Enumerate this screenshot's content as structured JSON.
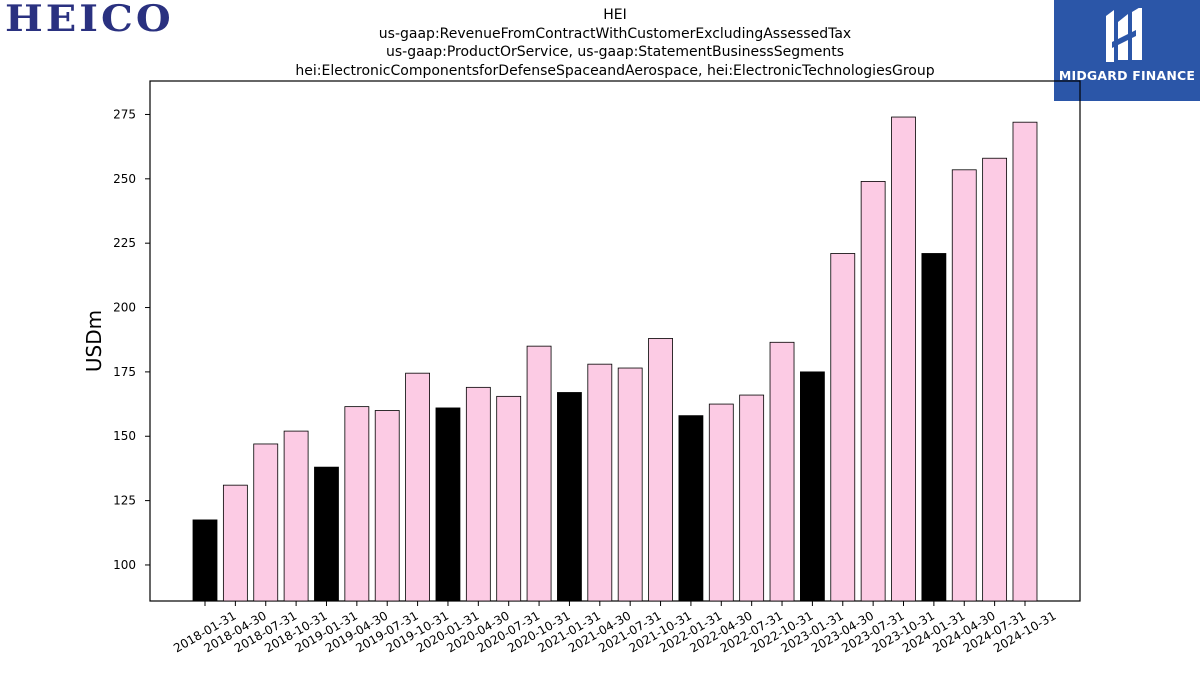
{
  "header": {
    "left_logo_text": "HEICO",
    "right_logo_text": "MIDGARD FINANCE"
  },
  "colors": {
    "pink": "#fccbe4",
    "black": "#000000",
    "heico_blue": "#2a3180",
    "midgard_blue": "#2b56a8"
  },
  "chart_data": {
    "type": "bar",
    "title_lines": [
      "HEI",
      "us-gaap:RevenueFromContractWithCustomerExcludingAssessedTax",
      "us-gaap:ProductOrService, us-gaap:StatementBusinessSegments",
      "hei:ElectronicComponentsforDefenseSpaceandAerospace, hei:ElectronicTechnologiesGroup"
    ],
    "ylabel": "USDm",
    "xlabel": "",
    "ylim": [
      86,
      288
    ],
    "yticks": [
      100,
      125,
      150,
      175,
      200,
      225,
      250,
      275
    ],
    "grid": false,
    "categories": [
      "2018-01-31",
      "2018-04-30",
      "2018-07-31",
      "2018-10-31",
      "2019-01-31",
      "2019-04-30",
      "2019-07-31",
      "2019-10-31",
      "2020-01-31",
      "2020-04-30",
      "2020-07-31",
      "2020-10-31",
      "2021-01-31",
      "2021-04-30",
      "2021-07-31",
      "2021-10-31",
      "2022-01-31",
      "2022-04-30",
      "2022-07-31",
      "2022-10-31",
      "2023-01-31",
      "2023-04-30",
      "2023-07-31",
      "2023-10-31",
      "2024-01-31",
      "2024-04-30",
      "2024-07-31",
      "2024-10-31"
    ],
    "values": [
      117.5,
      131.0,
      147.0,
      152.0,
      138.0,
      161.5,
      160.0,
      174.5,
      161.0,
      169.0,
      165.5,
      185.0,
      167.0,
      178.0,
      176.5,
      188.0,
      158.0,
      162.5,
      166.0,
      186.5,
      175.0,
      221.0,
      249.0,
      274.0,
      221.0,
      253.5,
      258.0,
      272.0
    ],
    "bar_colors": [
      "black",
      "pink",
      "pink",
      "pink",
      "black",
      "pink",
      "pink",
      "pink",
      "black",
      "pink",
      "pink",
      "pink",
      "black",
      "pink",
      "pink",
      "pink",
      "black",
      "pink",
      "pink",
      "pink",
      "black",
      "pink",
      "pink",
      "pink",
      "black",
      "pink",
      "pink",
      "pink"
    ]
  }
}
